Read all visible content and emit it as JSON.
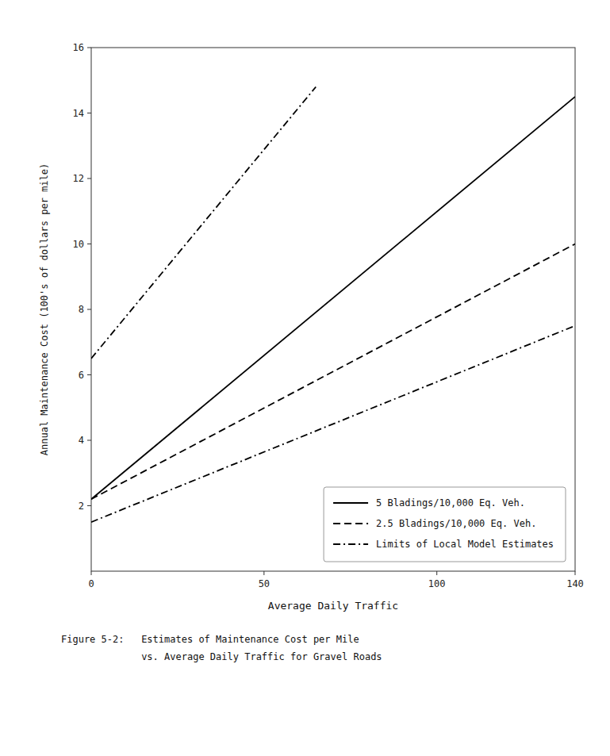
{
  "chart_data": {
    "type": "line",
    "x_label": "Average Daily Traffic",
    "y_label": "Annual Maintenance Cost (100's of dollars per mile)",
    "caption": [
      "Figure 5-2:   Estimates of Maintenance Cost per Mile",
      "              vs. Average Daily Traffic for Gravel Roads"
    ],
    "xlim": [
      0,
      140
    ],
    "ylim": [
      0,
      16
    ],
    "xticks": [
      0,
      50,
      100,
      140
    ],
    "yticks": [
      2,
      4,
      6,
      8,
      10,
      12,
      14,
      16
    ],
    "grid": false,
    "legend": "lower right",
    "series": [
      {
        "name": "5 Bladings/10,000 Eq. Veh.",
        "color": "#000000",
        "line_style": "solid",
        "x": [
          0,
          140
        ],
        "values": [
          2.2,
          14.5
        ]
      },
      {
        "name": "2.5 Bladings/10,000 Eq. Veh.",
        "color": "#000000",
        "line_style": "dashed",
        "x": [
          0,
          140
        ],
        "values": [
          2.2,
          10.0
        ]
      },
      {
        "name": "Limits of Local Model Estimates",
        "color": "#000000",
        "line_style": "dashdot",
        "x": [
          0,
          65
        ],
        "values": [
          6.5,
          14.8
        ]
      },
      {
        "color": "#000000",
        "line_style": "dashdot",
        "x": [
          0,
          140
        ],
        "values": [
          1.5,
          7.5
        ]
      }
    ]
  }
}
